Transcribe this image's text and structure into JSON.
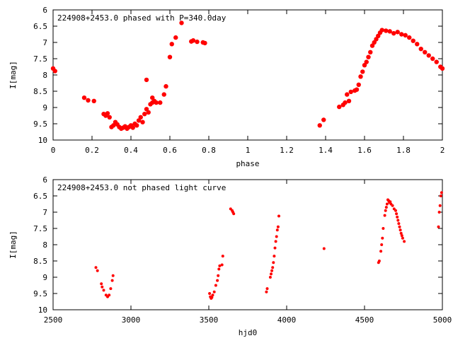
{
  "chart_data": [
    {
      "type": "scatter",
      "title": "224908+2453.0 phased with P=340.0day",
      "xlabel": "phase",
      "ylabel": "I[mag]",
      "xlim": [
        0,
        2
      ],
      "ylim": [
        10,
        6
      ],
      "y_inverted": true,
      "grid": false,
      "marker_color": "#ff0000",
      "marker": "filled-circle-large",
      "xticks": [
        "0",
        "0.2",
        "0.4",
        "0.6",
        "0.8",
        "1",
        "1.2",
        "1.4",
        "1.6",
        "1.8",
        "2"
      ],
      "yticks": [
        "6",
        "6.5",
        "7",
        "7.5",
        "8",
        "8.5",
        "9",
        "9.5",
        "10"
      ],
      "xtick_values": [
        0,
        0.2,
        0.4,
        0.6,
        0.8,
        1.0,
        1.2,
        1.4,
        1.6,
        1.8,
        2.0
      ],
      "ytick_values": [
        6,
        6.5,
        7,
        7.5,
        8,
        8.5,
        9,
        9.5,
        10
      ],
      "points": [
        [
          0.0,
          7.8
        ],
        [
          0.01,
          7.88
        ],
        [
          0.16,
          8.7
        ],
        [
          0.18,
          8.78
        ],
        [
          0.21,
          8.8
        ],
        [
          0.26,
          9.2
        ],
        [
          0.27,
          9.25
        ],
        [
          0.28,
          9.18
        ],
        [
          0.29,
          9.3
        ],
        [
          0.3,
          9.6
        ],
        [
          0.31,
          9.55
        ],
        [
          0.32,
          9.45
        ],
        [
          0.33,
          9.52
        ],
        [
          0.34,
          9.6
        ],
        [
          0.35,
          9.65
        ],
        [
          0.36,
          9.62
        ],
        [
          0.37,
          9.58
        ],
        [
          0.38,
          9.65
        ],
        [
          0.39,
          9.6
        ],
        [
          0.4,
          9.55
        ],
        [
          0.41,
          9.62
        ],
        [
          0.42,
          9.5
        ],
        [
          0.43,
          9.55
        ],
        [
          0.44,
          9.4
        ],
        [
          0.45,
          9.3
        ],
        [
          0.46,
          9.45
        ],
        [
          0.47,
          9.2
        ],
        [
          0.48,
          9.05
        ],
        [
          0.48,
          8.15
        ],
        [
          0.49,
          9.15
        ],
        [
          0.5,
          8.9
        ],
        [
          0.51,
          8.85
        ],
        [
          0.51,
          8.7
        ],
        [
          0.52,
          8.8
        ],
        [
          0.53,
          8.85
        ],
        [
          0.55,
          8.85
        ],
        [
          0.57,
          8.6
        ],
        [
          0.58,
          8.35
        ],
        [
          0.6,
          7.45
        ],
        [
          0.61,
          7.05
        ],
        [
          0.63,
          6.85
        ],
        [
          0.66,
          6.4
        ],
        [
          0.71,
          6.97
        ],
        [
          0.72,
          6.94
        ],
        [
          0.74,
          6.98
        ],
        [
          0.77,
          7.0
        ],
        [
          0.78,
          7.02
        ],
        [
          1.37,
          9.55
        ],
        [
          1.39,
          9.38
        ],
        [
          1.47,
          8.98
        ],
        [
          1.49,
          8.92
        ],
        [
          1.5,
          8.85
        ],
        [
          1.51,
          8.6
        ],
        [
          1.52,
          8.8
        ],
        [
          1.53,
          8.52
        ],
        [
          1.55,
          8.48
        ],
        [
          1.56,
          8.45
        ],
        [
          1.57,
          8.3
        ],
        [
          1.58,
          8.05
        ],
        [
          1.59,
          7.9
        ],
        [
          1.6,
          7.7
        ],
        [
          1.61,
          7.6
        ],
        [
          1.62,
          7.45
        ],
        [
          1.63,
          7.3
        ],
        [
          1.64,
          7.1
        ],
        [
          1.65,
          7.0
        ],
        [
          1.66,
          6.9
        ],
        [
          1.67,
          6.8
        ],
        [
          1.68,
          6.7
        ],
        [
          1.69,
          6.62
        ],
        [
          1.71,
          6.64
        ],
        [
          1.73,
          6.66
        ],
        [
          1.75,
          6.72
        ],
        [
          1.77,
          6.68
        ],
        [
          1.79,
          6.75
        ],
        [
          1.81,
          6.78
        ],
        [
          1.83,
          6.85
        ],
        [
          1.85,
          6.95
        ],
        [
          1.87,
          7.05
        ],
        [
          1.89,
          7.2
        ],
        [
          1.91,
          7.3
        ],
        [
          1.93,
          7.4
        ],
        [
          1.95,
          7.5
        ],
        [
          1.97,
          7.6
        ],
        [
          1.99,
          7.75
        ],
        [
          2.0,
          7.8
        ]
      ]
    },
    {
      "type": "scatter",
      "title": "224908+2453.0 not phased light curve",
      "xlabel": "hjd0",
      "ylabel": "I[mag]",
      "xlim": [
        2500,
        5000
      ],
      "ylim": [
        10,
        6
      ],
      "y_inverted": true,
      "grid": false,
      "marker_color": "#ff0000",
      "marker": "filled-circle-small",
      "xticks": [
        "2500",
        "3000",
        "3500",
        "4000",
        "4500",
        "5000"
      ],
      "yticks": [
        "6",
        "6.5",
        "7",
        "7.5",
        "8",
        "8.5",
        "9",
        "9.5",
        "10"
      ],
      "xtick_values": [
        2500,
        3000,
        3500,
        4000,
        4500,
        5000
      ],
      "ytick_values": [
        6,
        6.5,
        7,
        7.5,
        8,
        8.5,
        9,
        9.5,
        10
      ],
      "points": [
        [
          2775,
          8.7
        ],
        [
          2785,
          8.8
        ],
        [
          2810,
          9.2
        ],
        [
          2815,
          9.3
        ],
        [
          2825,
          9.4
        ],
        [
          2840,
          9.55
        ],
        [
          2850,
          9.6
        ],
        [
          2860,
          9.55
        ],
        [
          2870,
          9.35
        ],
        [
          2880,
          9.1
        ],
        [
          2885,
          8.95
        ],
        [
          3505,
          9.5
        ],
        [
          3510,
          9.6
        ],
        [
          3515,
          9.65
        ],
        [
          3520,
          9.62
        ],
        [
          3525,
          9.55
        ],
        [
          3535,
          9.45
        ],
        [
          3545,
          9.25
        ],
        [
          3555,
          9.1
        ],
        [
          3560,
          8.95
        ],
        [
          3565,
          8.75
        ],
        [
          3570,
          8.65
        ],
        [
          3585,
          8.62
        ],
        [
          3590,
          8.35
        ],
        [
          3640,
          6.9
        ],
        [
          3650,
          6.95
        ],
        [
          3655,
          7.0
        ],
        [
          3660,
          7.05
        ],
        [
          3870,
          9.45
        ],
        [
          3875,
          9.35
        ],
        [
          3895,
          9.0
        ],
        [
          3900,
          8.9
        ],
        [
          3905,
          8.8
        ],
        [
          3910,
          8.7
        ],
        [
          3915,
          8.55
        ],
        [
          3920,
          8.35
        ],
        [
          3925,
          8.1
        ],
        [
          3930,
          7.9
        ],
        [
          3935,
          7.75
        ],
        [
          3940,
          7.55
        ],
        [
          3945,
          7.45
        ],
        [
          3950,
          7.12
        ],
        [
          4240,
          8.12
        ],
        [
          4590,
          8.55
        ],
        [
          4595,
          8.5
        ],
        [
          4605,
          8.2
        ],
        [
          4610,
          8.0
        ],
        [
          4615,
          7.8
        ],
        [
          4620,
          7.5
        ],
        [
          4630,
          7.1
        ],
        [
          4635,
          6.95
        ],
        [
          4640,
          6.85
        ],
        [
          4645,
          6.75
        ],
        [
          4650,
          6.62
        ],
        [
          4655,
          6.65
        ],
        [
          4660,
          6.7
        ],
        [
          4665,
          6.68
        ],
        [
          4670,
          6.75
        ],
        [
          4680,
          6.8
        ],
        [
          4690,
          6.9
        ],
        [
          4700,
          6.95
        ],
        [
          4705,
          7.05
        ],
        [
          4710,
          7.15
        ],
        [
          4715,
          7.25
        ],
        [
          4720,
          7.35
        ],
        [
          4725,
          7.45
        ],
        [
          4730,
          7.55
        ],
        [
          4735,
          7.65
        ],
        [
          4740,
          7.72
        ],
        [
          4745,
          7.8
        ],
        [
          4755,
          7.9
        ],
        [
          4975,
          7.45
        ],
        [
          4980,
          7.0
        ],
        [
          4985,
          6.8
        ],
        [
          4990,
          6.5
        ],
        [
          4995,
          6.4
        ]
      ]
    }
  ]
}
